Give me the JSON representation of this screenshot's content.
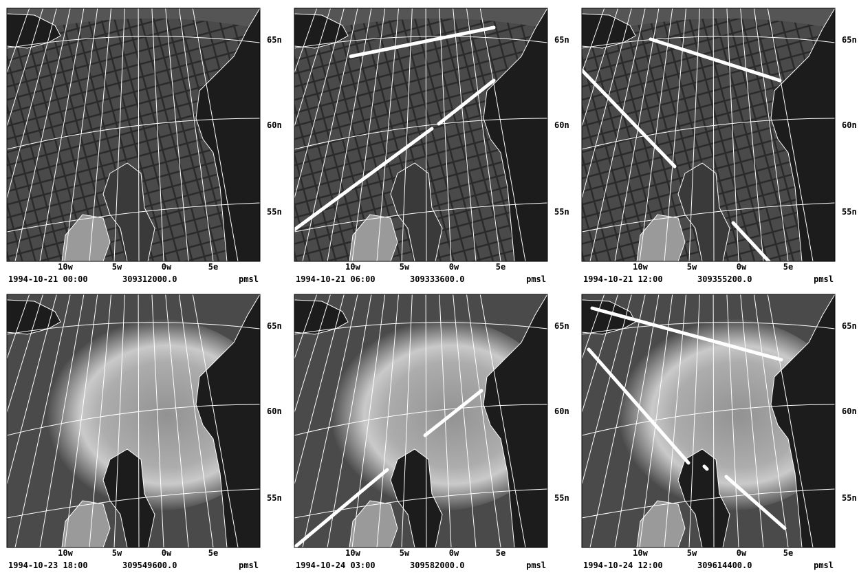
{
  "lat_labels": [
    "65n",
    "60n",
    "55n"
  ],
  "lon_labels": [
    "10w",
    "5w",
    "0w",
    "5e"
  ],
  "panels": [
    {
      "date": "1994-10-21 00:00",
      "value": "309312000.0",
      "field": "pmsl"
    },
    {
      "date": "1994-10-21 06:00",
      "value": "309333600.0",
      "field": "pmsl"
    },
    {
      "date": "1994-10-21 12:00",
      "value": "309355200.0",
      "field": "pmsl"
    },
    {
      "date": "1994-10-23 18:00",
      "value": "309549600.0",
      "field": "pmsl"
    },
    {
      "date": "1994-10-24 03:00",
      "value": "309582000.0",
      "field": "pmsl"
    },
    {
      "date": "1994-10-24 12:00",
      "value": "309614400.0",
      "field": "pmsl"
    }
  ]
}
